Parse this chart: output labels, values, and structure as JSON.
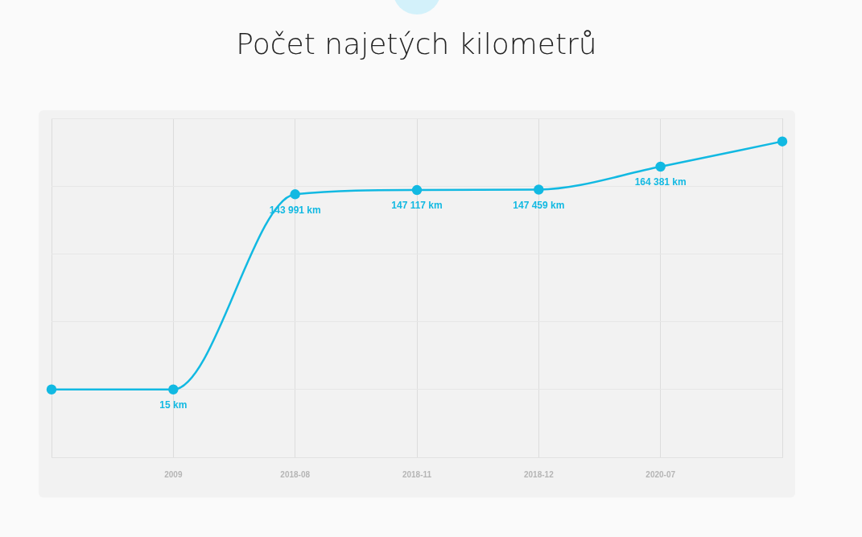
{
  "chart_data": {
    "type": "line",
    "title": "Počet najetých kilometrů",
    "categories": [
      null,
      "2009",
      "2018-08",
      "2018-11",
      "2018-12",
      "2020-07",
      null
    ],
    "series": [
      {
        "color": "#12b9e2",
        "values": [
          15,
          15,
          143991,
          147117,
          147459,
          164381,
          183000
        ],
        "value_labels": [
          null,
          "15 km",
          "143 991 km",
          "147 117 km",
          "147 459 km",
          "164 381 km",
          null
        ]
      }
    ],
    "marker": "circle",
    "grid": true,
    "legend": false,
    "tick_labels": "x"
  }
}
